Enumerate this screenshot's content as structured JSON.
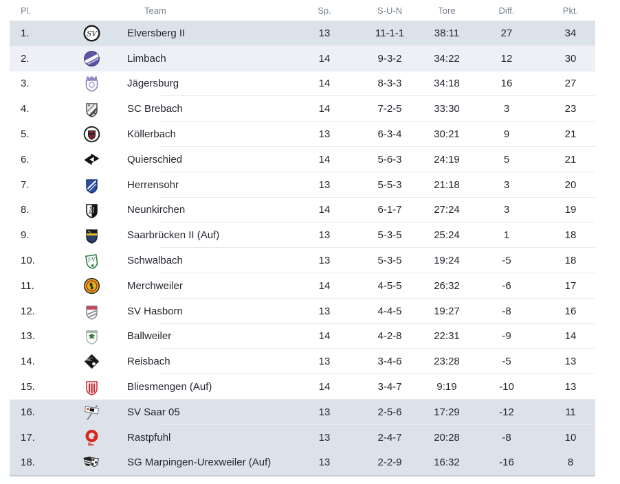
{
  "colors": {
    "page_bg": "#ffffff",
    "zone_strong_bg": "#dce2ea",
    "zone_light_bg": "#eef0f5",
    "row_separator": "#e9eaef",
    "table_bottom_border": "#c6ccd6",
    "header_text": "#78828f",
    "cell_text": "#23272e"
  },
  "header": {
    "pl": "Pl.",
    "team": "Team",
    "sp": "Sp.",
    "sun": "S-U-N",
    "tore": "Tore",
    "diff": "Diff.",
    "pkt": "Pkt."
  },
  "rows": [
    {
      "pl": "1.",
      "team": "Elversberg II",
      "sp": "13",
      "sun": "11-1-1",
      "tore": "38:11",
      "diff": "27",
      "pkt": "34",
      "zone": "top",
      "logo": {
        "name": "elversberg-crest-icon",
        "type": "circleMono",
        "c1": "#ffffff",
        "c2": "#1c1c1c",
        "text": "SV"
      }
    },
    {
      "pl": "2.",
      "team": "Limbach",
      "sp": "14",
      "sun": "9-3-2",
      "tore": "34:22",
      "diff": "12",
      "pkt": "30",
      "zone": "top2",
      "logo": {
        "name": "limbach-crest-icon",
        "type": "circleBand",
        "c1": "#5e55a6",
        "c2": "#ffffff",
        "c3": "#3f3a7a"
      }
    },
    {
      "pl": "3.",
      "team": "Jägersburg",
      "sp": "14",
      "sun": "8-3-3",
      "tore": "34:18",
      "diff": "16",
      "pkt": "27",
      "zone": "",
      "logo": {
        "name": "jaegersburg-crest-icon",
        "type": "crestCrown",
        "c1": "#ffffff",
        "c2": "#9185c2"
      }
    },
    {
      "pl": "4.",
      "team": "SC Brebach",
      "sp": "14",
      "sun": "7-2-5",
      "tore": "33:30",
      "diff": "3",
      "pkt": "23",
      "zone": "",
      "logo": {
        "name": "brebach-crest-icon",
        "type": "shieldDiag",
        "c1": "#f2f2f2",
        "c2": "#4a4a4a",
        "c3": "#9a9a9a"
      }
    },
    {
      "pl": "5.",
      "team": "Köllerbach",
      "sp": "13",
      "sun": "6-3-4",
      "tore": "30:21",
      "diff": "9",
      "pkt": "21",
      "zone": "",
      "logo": {
        "name": "koellerbach-crest-icon",
        "type": "circleCrest",
        "c1": "#ffffff",
        "c2": "#232323",
        "c3": "#7c2531"
      }
    },
    {
      "pl": "6.",
      "team": "Quierschied",
      "sp": "14",
      "sun": "5-6-3",
      "tore": "24:19",
      "diff": "5",
      "pkt": "21",
      "zone": "",
      "logo": {
        "name": "quierschied-crest-icon",
        "type": "arrows",
        "c1": "#101010",
        "c2": "#ffffff"
      }
    },
    {
      "pl": "7.",
      "team": "Herrensohr",
      "sp": "13",
      "sun": "5-5-3",
      "tore": "21:18",
      "diff": "3",
      "pkt": "20",
      "zone": "",
      "logo": {
        "name": "herrensohr-crest-icon",
        "type": "crest",
        "c1": "#2d4fa0",
        "c2": "#1c3576",
        "c3": "#ffffff"
      }
    },
    {
      "pl": "8.",
      "team": "Neunkirchen",
      "sp": "14",
      "sun": "6-1-7",
      "tore": "27:24",
      "diff": "3",
      "pkt": "19",
      "zone": "",
      "logo": {
        "name": "neunkirchen-crest-icon",
        "type": "shieldMono",
        "c1": "#ffffff",
        "c2": "#141414",
        "text": "B"
      }
    },
    {
      "pl": "9.",
      "team": "Saarbrücken II (Auf)",
      "sp": "13",
      "sun": "5-3-5",
      "tore": "25:24",
      "diff": "1",
      "pkt": "18",
      "zone": "",
      "logo": {
        "name": "saarbruecken-crest-icon",
        "type": "shieldBand",
        "c1": "#2b3e63",
        "c2": "#131c2b",
        "c3": "#ecbe2d"
      }
    },
    {
      "pl": "10.",
      "team": "Schwalbach",
      "sp": "13",
      "sun": "5-3-5",
      "tore": "19:24",
      "diff": "-5",
      "pkt": "18",
      "zone": "",
      "logo": {
        "name": "schwalbach-crest-icon",
        "type": "tiltedShield",
        "c1": "#ffffff",
        "c2": "#2f7c48",
        "text": "FV"
      }
    },
    {
      "pl": "11.",
      "team": "Merchweiler",
      "sp": "14",
      "sun": "4-5-5",
      "tore": "26:32",
      "diff": "-6",
      "pkt": "17",
      "zone": "",
      "logo": {
        "name": "merchweiler-crest-icon",
        "type": "circleRing",
        "c1": "#e5b411",
        "c2": "#2b2b2b",
        "c3": "#bf3127"
      }
    },
    {
      "pl": "12.",
      "team": "SV Hasborn",
      "sp": "13",
      "sun": "4-4-5",
      "tore": "19:27",
      "diff": "-8",
      "pkt": "16",
      "zone": "",
      "logo": {
        "name": "hasborn-crest-icon",
        "type": "shieldTop",
        "c1": "#fdfdfd",
        "c2": "#8a8f96",
        "c3": "#c04c66"
      }
    },
    {
      "pl": "13.",
      "team": "Ballweiler",
      "sp": "14",
      "sun": "4-2-8",
      "tore": "22:31",
      "diff": "-9",
      "pkt": "14",
      "zone": "",
      "logo": {
        "name": "ballweiler-crest-icon",
        "type": "shieldEagle",
        "c1": "#ffffff",
        "c2": "#9fb3a8",
        "c3": "#37793f"
      }
    },
    {
      "pl": "14.",
      "team": "Reisbach",
      "sp": "13",
      "sun": "3-4-6",
      "tore": "23:28",
      "diff": "-5",
      "pkt": "13",
      "zone": "",
      "logo": {
        "name": "reisbach-crest-icon",
        "type": "diamond",
        "c1": "#151515",
        "c2": "#ffffff",
        "text": "SC"
      }
    },
    {
      "pl": "15.",
      "team": "Bliesmengen (Auf)",
      "sp": "14",
      "sun": "3-4-7",
      "tore": "9:19",
      "diff": "-10",
      "pkt": "13",
      "zone": "",
      "logo": {
        "name": "bliesmengen-crest-icon",
        "type": "shieldStripes",
        "c1": "#ffffff",
        "c2": "#c9252b"
      }
    },
    {
      "pl": "16.",
      "team": "SV Saar 05",
      "sp": "13",
      "sun": "2-5-6",
      "tore": "17:29",
      "diff": "-12",
      "pkt": "11",
      "zone": "bottom",
      "logo": {
        "name": "saar05-flag-icon",
        "type": "flag",
        "c1": "#ffffff",
        "c2": "#6a6f77",
        "c3": "#17171c",
        "c4": "#d03028"
      }
    },
    {
      "pl": "17.",
      "team": "Rastpfuhl",
      "sp": "13",
      "sun": "2-4-7",
      "tore": "20:28",
      "diff": "-8",
      "pkt": "10",
      "zone": "bottom",
      "logo": {
        "name": "rastpfuhl-crest-icon",
        "type": "ringA",
        "c1": "#d8281c"
      }
    },
    {
      "pl": "18.",
      "team": "SG Marpingen-Urexweiler (Auf)",
      "sp": "13",
      "sun": "2-2-9",
      "tore": "16:32",
      "diff": "-16",
      "pkt": "8",
      "zone": "bottom",
      "logo": {
        "name": "marpingen-crest-icon",
        "type": "doubleCrest",
        "c1": "#242424",
        "c2": "#ffffff"
      }
    }
  ]
}
